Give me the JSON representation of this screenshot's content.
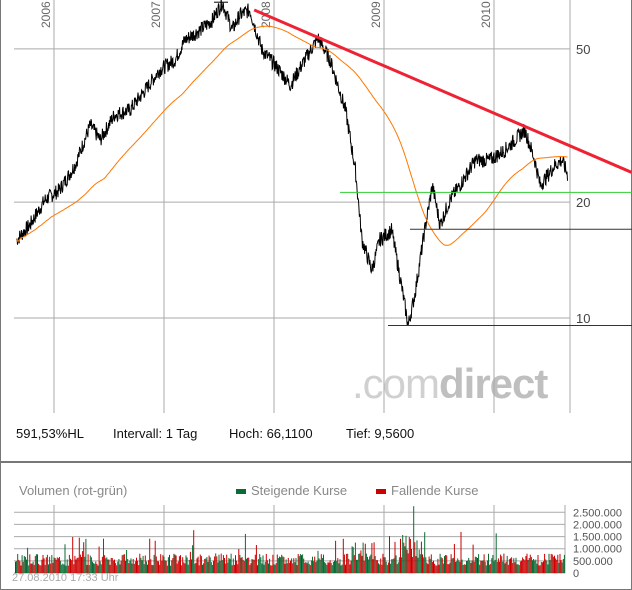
{
  "info": {
    "perf": "591,53%HL",
    "interval": "Intervall: 1 Tag",
    "high": "Hoch: 66,1100",
    "low": "Tief: 9,5600"
  },
  "logo": {
    "light": ".com",
    "bold": "direct"
  },
  "volume": {
    "title": "Volumen (rot-grün)",
    "rising": "Steigende Kurse",
    "falling": "Fallende Kurse",
    "timestamp": "27.08.2010 17:33 Uhr"
  },
  "colors": {
    "price": "#000000",
    "ma": "#ff7700",
    "trend": "#ee2233",
    "support": "#33cc33",
    "up": "#0a6b35",
    "down": "#cc0000"
  },
  "chart_data": [
    {
      "type": "line",
      "scale": "log",
      "x_ticks": [
        "2006",
        "2007",
        "2008",
        "2009",
        "2010"
      ],
      "y_ticks": [
        "50",
        "20",
        "10"
      ],
      "xlim": [
        2005.6,
        2011.25
      ],
      "ylim": [
        7.2,
        70
      ],
      "price": {
        "x": [
          2005.66,
          2005.78,
          2005.92,
          2006.05,
          2006.19,
          2006.33,
          2006.42,
          2006.55,
          2006.69,
          2006.83,
          2006.96,
          2007.1,
          2007.19,
          2007.33,
          2007.44,
          2007.53,
          2007.62,
          2007.69,
          2007.78,
          2007.89,
          2008.01,
          2008.15,
          2008.28,
          2008.4,
          2008.51,
          2008.65,
          2008.74,
          2008.8,
          2008.89,
          2008.96,
          2009.07,
          2009.15,
          2009.22,
          2009.28,
          2009.37,
          2009.44,
          2009.51,
          2009.6,
          2009.69,
          2009.83,
          2009.96,
          2010.1,
          2010.19,
          2010.28,
          2010.37,
          2010.42,
          2010.49,
          2010.55,
          2010.62,
          2010.67
        ],
        "y": [
          15.95,
          17.44,
          20.3,
          21.5,
          24.9,
          31.7,
          29.0,
          33.7,
          34.7,
          39.1,
          44.1,
          46.8,
          52.7,
          56.0,
          59.4,
          66.11,
          56.0,
          61.2,
          63.1,
          49.7,
          45.4,
          40.3,
          46.8,
          53.4,
          46.8,
          34.7,
          24.2,
          15.95,
          13.3,
          15.95,
          16.9,
          12.55,
          9.56,
          11.5,
          16.9,
          22.1,
          17.44,
          20.3,
          22.1,
          25.7,
          25.7,
          27.3,
          29.0,
          30.8,
          25.7,
          22.1,
          23.5,
          24.9,
          25.7,
          23.5
        ]
      },
      "moving_average": "orange",
      "trend_line": {
        "from": [
          2007.82,
          63.1
        ],
        "to": [
          2011.25,
          23.9
        ]
      },
      "support_line": 21.2,
      "horizontal_lines": [
        17.0,
        9.56
      ],
      "high_marker": 66.11
    },
    {
      "type": "bar",
      "title": "Volumen (rot-grün)",
      "y_ticks": [
        "2.500.000",
        "2.000.000",
        "1.500.000",
        "1.000.000",
        "500.000",
        "0"
      ],
      "y_tick_values": [
        2500000,
        2000000,
        1500000,
        1000000,
        500000,
        0
      ],
      "ylim": [
        0,
        2800000
      ]
    }
  ]
}
